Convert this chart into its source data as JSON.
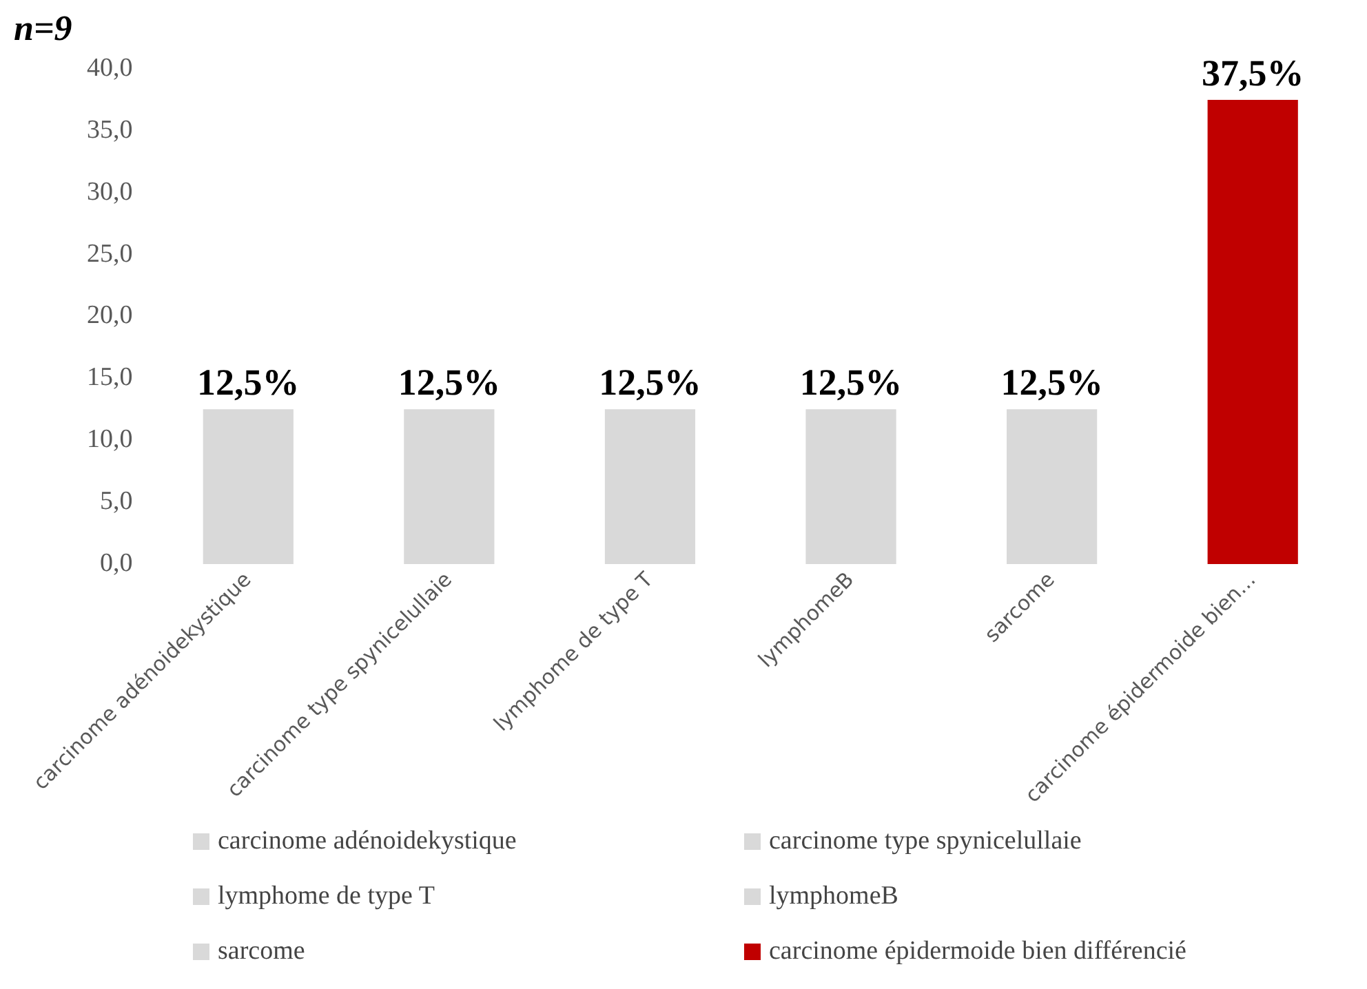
{
  "chart_data": {
    "type": "bar",
    "stacked": true,
    "annotations": [
      "n=9"
    ],
    "categories": [
      "carcinome adénoidekystique",
      "carcinome type spynicelullaie",
      "lymphome de type T",
      "lymphomeB",
      "sarcome",
      "carcinome épidermoide bien..."
    ],
    "series": [
      {
        "name": "carcinome adénoidekystique",
        "color": "#d9d9d9",
        "values": [
          12.5,
          null,
          null,
          null,
          null,
          null
        ],
        "value_labels": [
          "12,5%",
          null,
          null,
          null,
          null,
          null
        ]
      },
      {
        "name": "carcinome type spynicelullaie",
        "color": "#d9d9d9",
        "values": [
          null,
          12.5,
          null,
          null,
          null,
          null
        ],
        "value_labels": [
          null,
          "12,5%",
          null,
          null,
          null,
          null
        ]
      },
      {
        "name": "lymphome de type T",
        "color": "#d9d9d9",
        "values": [
          null,
          null,
          12.5,
          null,
          null,
          null
        ],
        "value_labels": [
          null,
          null,
          "12,5%",
          null,
          null,
          null
        ]
      },
      {
        "name": "lymphomeB",
        "color": "#d9d9d9",
        "values": [
          null,
          null,
          null,
          12.5,
          null,
          null
        ],
        "value_labels": [
          null,
          null,
          null,
          "12,5%",
          null,
          null
        ]
      },
      {
        "name": "sarcome",
        "color": "#d9d9d9",
        "values": [
          null,
          null,
          null,
          null,
          12.5,
          null
        ],
        "value_labels": [
          null,
          null,
          null,
          null,
          "12,5%",
          null
        ]
      },
      {
        "name": "carcinome épidermoide bien différencié",
        "color": "#c00000",
        "values": [
          null,
          null,
          null,
          null,
          null,
          37.5
        ],
        "value_labels": [
          null,
          null,
          null,
          null,
          null,
          "37,5%"
        ]
      }
    ],
    "ylim": [
      0,
      40
    ],
    "yticks": [
      {
        "value": 0,
        "label": "0,0"
      },
      {
        "value": 5,
        "label": "5,0"
      },
      {
        "value": 10,
        "label": "10,0"
      },
      {
        "value": 15,
        "label": "15,0"
      },
      {
        "value": 20,
        "label": "20,0"
      },
      {
        "value": 25,
        "label": "25,0"
      },
      {
        "value": 30,
        "label": "30,0"
      },
      {
        "value": 35,
        "label": "35,0"
      },
      {
        "value": 40,
        "label": "40,0"
      }
    ],
    "grid": false,
    "legend": "bottom"
  }
}
